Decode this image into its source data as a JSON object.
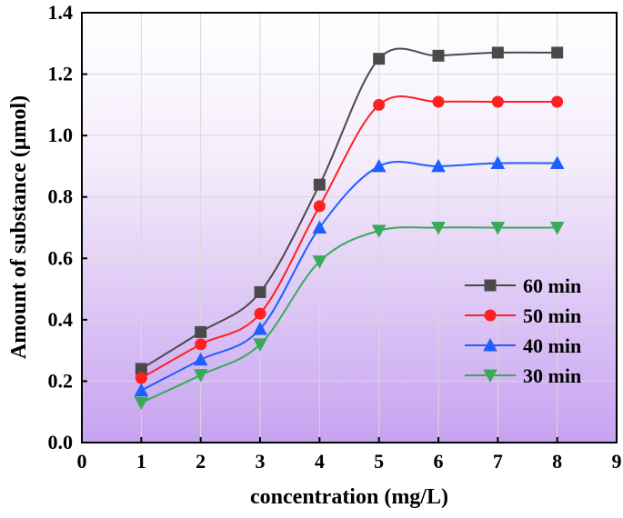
{
  "chart_data": {
    "type": "line",
    "title": "",
    "xlabel": "concentration (mg/L)",
    "ylabel": "Amount of substance (μmol)",
    "xlim": [
      0,
      9
    ],
    "ylim": [
      0,
      1.4
    ],
    "x_ticks": [
      0,
      1,
      2,
      3,
      4,
      5,
      6,
      7,
      8,
      9
    ],
    "y_ticks": [
      0.0,
      0.2,
      0.4,
      0.6,
      0.8,
      1.0,
      1.2,
      1.4
    ],
    "grid": true,
    "legend_position": "right",
    "background": "gradient white (top) to light purple (bottom)",
    "x": [
      1,
      2,
      3,
      4,
      5,
      6,
      7,
      8
    ],
    "series": [
      {
        "name": "60 min",
        "color": "#4a4a4a",
        "marker": "square",
        "values": [
          0.24,
          0.36,
          0.49,
          0.84,
          1.25,
          1.26,
          1.27,
          1.27
        ]
      },
      {
        "name": "50 min",
        "color": "#ff2020",
        "marker": "circle",
        "values": [
          0.21,
          0.32,
          0.42,
          0.77,
          1.1,
          1.11,
          1.11,
          1.11
        ]
      },
      {
        "name": "40 min",
        "color": "#1f5fff",
        "marker": "triangle-up",
        "values": [
          0.17,
          0.27,
          0.37,
          0.7,
          0.9,
          0.9,
          0.91,
          0.91
        ]
      },
      {
        "name": "30 min",
        "color": "#3aaa5a",
        "marker": "triangle-down",
        "values": [
          0.13,
          0.22,
          0.32,
          0.59,
          0.69,
          0.7,
          0.7,
          0.7
        ]
      }
    ]
  }
}
